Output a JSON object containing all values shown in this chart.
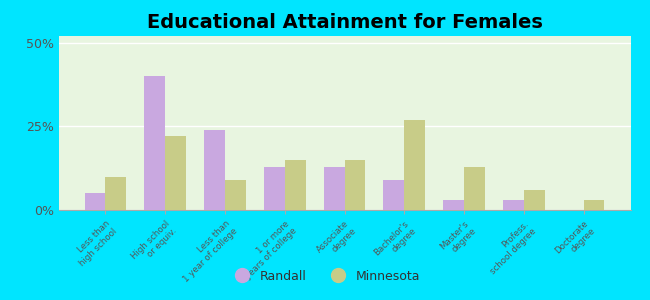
{
  "title": "Educational Attainment for Females",
  "categories": [
    "Less than\nhigh school",
    "High school\nor equiv.",
    "Less than\n1 year of college",
    "1 or more\nyears of college",
    "Associate\ndegree",
    "Bachelor's\ndegree",
    "Master's\ndegree",
    "Profess.\nschool degree",
    "Doctorate\ndegree"
  ],
  "randall": [
    5.0,
    40.0,
    24.0,
    13.0,
    13.0,
    9.0,
    3.0,
    3.0,
    0.0
  ],
  "minnesota": [
    10.0,
    22.0,
    9.0,
    15.0,
    15.0,
    27.0,
    13.0,
    6.0,
    3.0
  ],
  "randall_color": "#c9a8e0",
  "minnesota_color": "#c8cc88",
  "background_color": "#e8f5e0",
  "outer_background": "#00e5ff",
  "title_fontsize": 14,
  "yticks": [
    0,
    25,
    50
  ],
  "ylim": [
    0,
    52
  ],
  "legend_labels": [
    "Randall",
    "Minnesota"
  ]
}
